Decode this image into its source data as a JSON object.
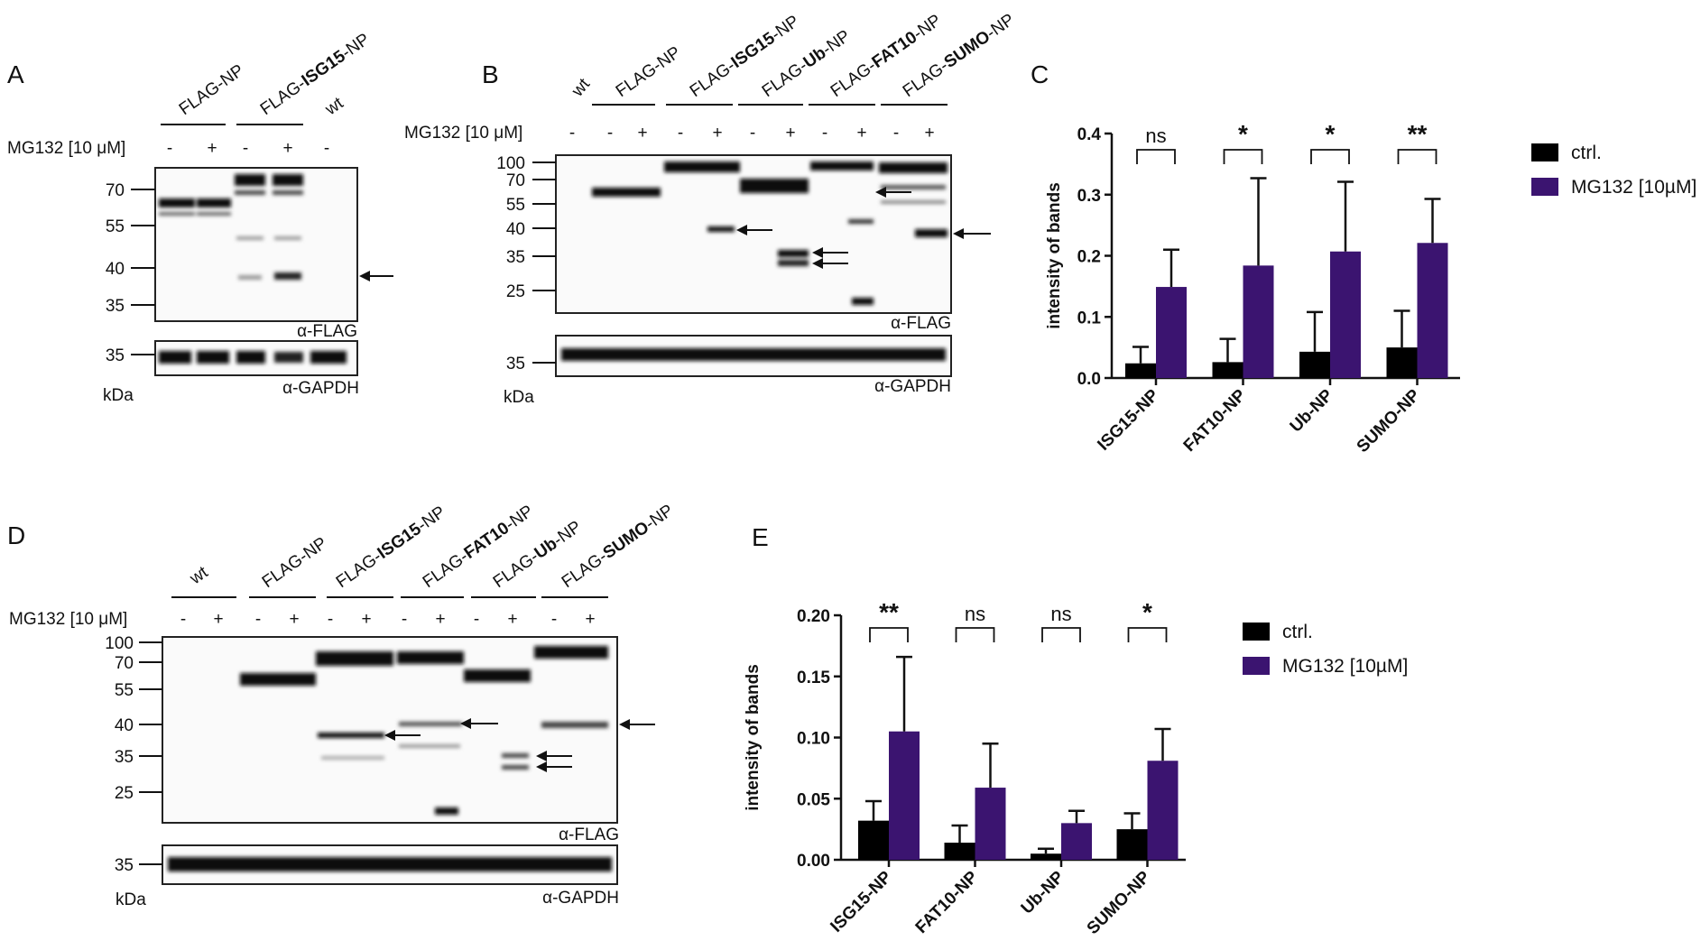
{
  "panels": {
    "A": {
      "label": "A",
      "lanes": [
        {
          "pre": "FLAG-",
          "bold": "",
          "post": "NP"
        },
        {
          "pre": "FLAG-",
          "bold": "ISG15",
          "post": "-NP"
        },
        {
          "pre": "",
          "bold": "",
          "post": "wt"
        }
      ],
      "treatment": "MG132 [10 μM]",
      "signs": [
        "-",
        "+",
        "-",
        "+",
        "-"
      ],
      "markers": [
        "70",
        "55",
        "40",
        "35"
      ],
      "gapdh_marker": "35",
      "antibody_top": "α-FLAG",
      "antibody_bottom": "α-GAPDH",
      "unit": "kDa"
    },
    "B": {
      "label": "B",
      "lanes": [
        {
          "pre": "",
          "bold": "",
          "post": "wt"
        },
        {
          "pre": "FLAG-",
          "bold": "",
          "post": "NP"
        },
        {
          "pre": "FLAG-",
          "bold": "ISG15",
          "post": "-NP"
        },
        {
          "pre": "FLAG-",
          "bold": "Ub",
          "post": "-NP"
        },
        {
          "pre": "FLAG-",
          "bold": "FAT10",
          "post": "-NP"
        },
        {
          "pre": "FLAG-",
          "bold": "SUMO",
          "post": "-NP"
        }
      ],
      "treatment": "MG132 [10 μM]",
      "signs": [
        "-",
        "-",
        "+",
        "-",
        "+",
        "-",
        "+",
        "-",
        "+",
        "-",
        "+"
      ],
      "markers": [
        "100",
        "70",
        "55",
        "40",
        "35",
        "25"
      ],
      "gapdh_marker": "35",
      "antibody_top": "α-FLAG",
      "antibody_bottom": "α-GAPDH",
      "unit": "kDa"
    },
    "D": {
      "label": "D",
      "lanes": [
        {
          "pre": "",
          "bold": "",
          "post": "wt"
        },
        {
          "pre": "FLAG-",
          "bold": "",
          "post": "NP"
        },
        {
          "pre": "FLAG-",
          "bold": "ISG15",
          "post": "-NP"
        },
        {
          "pre": "FLAG-",
          "bold": "FAT10",
          "post": "-NP"
        },
        {
          "pre": "FLAG-",
          "bold": "Ub",
          "post": "-NP"
        },
        {
          "pre": "FLAG-",
          "bold": "SUMO",
          "post": "-NP"
        }
      ],
      "treatment": "MG132 [10 μM]",
      "signs": [
        "-",
        "+",
        "-",
        "+",
        "-",
        "+",
        "-",
        "+",
        "-",
        "+",
        "-",
        "+"
      ],
      "markers": [
        "100",
        "70",
        "55",
        "40",
        "35",
        "25"
      ],
      "gapdh_marker": "35",
      "antibody_top": "α-FLAG",
      "antibody_bottom": "α-GAPDH",
      "unit": "kDa"
    },
    "C": {
      "label": "C"
    },
    "E": {
      "label": "E"
    }
  },
  "chart_data": [
    {
      "panel": "C",
      "type": "bar",
      "categories": [
        "ISG15-NP",
        "FAT10-NP",
        "Ub-NP",
        "SUMO-NP"
      ],
      "series": [
        {
          "name": "ctrl.",
          "color": "#000000",
          "values": [
            0.024,
            0.026,
            0.043,
            0.05
          ],
          "errors": [
            0.027,
            0.038,
            0.065,
            0.06
          ]
        },
        {
          "name": "MG132 [10µM]",
          "color": "#3b1470",
          "values": [
            0.149,
            0.184,
            0.207,
            0.221
          ],
          "errors": [
            0.061,
            0.143,
            0.114,
            0.072
          ]
        }
      ],
      "significance": [
        "ns",
        "*",
        "*",
        "**"
      ],
      "ylabel": "intensity of bands",
      "ylim": [
        0,
        0.4
      ],
      "yticks": [
        "0.0",
        "0.1",
        "0.2",
        "0.3",
        "0.4"
      ],
      "legend": "top-right"
    },
    {
      "panel": "E",
      "type": "bar",
      "categories": [
        "ISG15-NP",
        "FAT10-NP",
        "Ub-NP",
        "SUMO-NP"
      ],
      "series": [
        {
          "name": "ctrl.",
          "color": "#000000",
          "values": [
            0.032,
            0.014,
            0.005,
            0.025
          ],
          "errors": [
            0.016,
            0.014,
            0.004,
            0.013
          ]
        },
        {
          "name": "MG132 [10µM]",
          "color": "#3b1470",
          "values": [
            0.105,
            0.059,
            0.03,
            0.081
          ],
          "errors": [
            0.061,
            0.036,
            0.01,
            0.026
          ]
        }
      ],
      "significance": [
        "**",
        "ns",
        "ns",
        "*"
      ],
      "ylabel": "intensity of bands",
      "ylim": [
        0,
        0.2
      ],
      "yticks": [
        "0.00",
        "0.05",
        "0.10",
        "0.15",
        "0.20"
      ],
      "legend": "top-right"
    }
  ]
}
